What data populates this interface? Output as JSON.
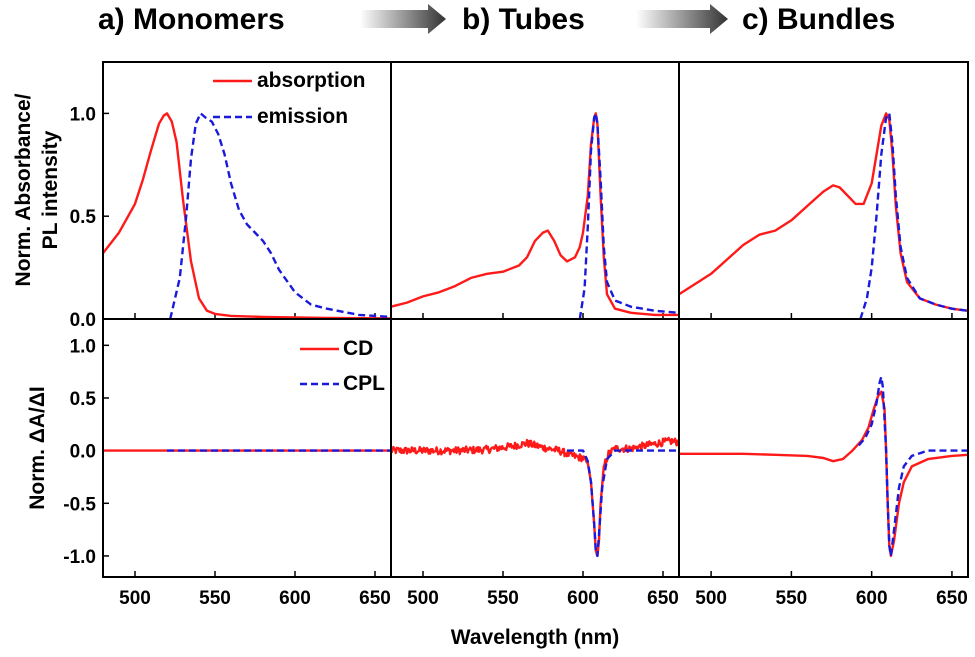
{
  "figure": {
    "headers": [
      "a)  Monomers",
      "b) Tubes",
      "c) Bundles"
    ],
    "ylabel_top_line1": "Norm. Absorbance/",
    "ylabel_top_line2": "PL intensity",
    "ylabel_bottom": "Norm. ΔA/ΔI",
    "xlabel": "Wavelength (nm)",
    "legend_top": [
      "absorption",
      "emission"
    ],
    "legend_bottom": [
      "CD",
      "CPL"
    ],
    "colors": {
      "red": "#ff1a1a",
      "blue": "#1a1adc",
      "arrow": "#444444"
    }
  },
  "chart_data": [
    {
      "type": "line",
      "panel": "top-a",
      "title": "a)  Monomers",
      "xlabel": "",
      "ylabel": "Norm. Absorbance/ PL intensity",
      "xlim": [
        480,
        660
      ],
      "ylim": [
        0,
        1.25
      ],
      "xticks": [
        500,
        550,
        600,
        650
      ],
      "yticks": [
        0.0,
        0.5,
        1.0
      ],
      "legend": "top-right",
      "series": [
        {
          "name": "absorption",
          "style": "solid",
          "color": "#ff1a1a",
          "x": [
            480,
            490,
            500,
            505,
            510,
            515,
            518,
            520,
            523,
            526,
            530,
            535,
            540,
            545,
            550,
            560,
            580,
            600,
            620,
            660
          ],
          "y": [
            0.32,
            0.42,
            0.56,
            0.68,
            0.82,
            0.95,
            0.99,
            1.0,
            0.96,
            0.86,
            0.58,
            0.28,
            0.1,
            0.04,
            0.025,
            0.015,
            0.01,
            0.008,
            0.005,
            0.003
          ]
        },
        {
          "name": "emission",
          "style": "dashed",
          "color": "#1a1adc",
          "x": [
            522,
            528,
            532,
            535,
            538,
            541,
            544,
            548,
            552,
            556,
            560,
            565,
            570,
            575,
            580,
            585,
            590,
            600,
            610,
            620,
            640,
            660
          ],
          "y": [
            0.0,
            0.2,
            0.5,
            0.78,
            0.95,
            1.0,
            0.98,
            0.96,
            0.9,
            0.8,
            0.66,
            0.53,
            0.46,
            0.42,
            0.38,
            0.32,
            0.24,
            0.13,
            0.07,
            0.05,
            0.02,
            0.01
          ]
        }
      ]
    },
    {
      "type": "line",
      "panel": "top-b",
      "title": "b) Tubes",
      "xlim": [
        480,
        660
      ],
      "ylim": [
        0,
        1.25
      ],
      "xticks": [
        500,
        550,
        600,
        650
      ],
      "series": [
        {
          "name": "absorption",
          "style": "solid",
          "color": "#ff1a1a",
          "x": [
            480,
            490,
            500,
            510,
            520,
            530,
            540,
            550,
            560,
            565,
            570,
            575,
            578,
            582,
            586,
            590,
            595,
            598,
            600,
            603,
            605,
            607,
            608,
            609,
            611,
            613,
            615,
            620,
            630,
            645,
            660
          ],
          "y": [
            0.06,
            0.08,
            0.11,
            0.13,
            0.16,
            0.2,
            0.22,
            0.23,
            0.26,
            0.3,
            0.38,
            0.42,
            0.43,
            0.38,
            0.31,
            0.28,
            0.3,
            0.35,
            0.42,
            0.6,
            0.85,
            0.98,
            1.0,
            0.95,
            0.6,
            0.3,
            0.12,
            0.05,
            0.03,
            0.02,
            0.02
          ]
        },
        {
          "name": "emission",
          "style": "dashed",
          "color": "#1a1adc",
          "x": [
            598,
            601,
            603,
            605,
            607,
            608,
            609,
            611,
            613,
            615,
            620,
            630,
            645,
            660
          ],
          "y": [
            0.0,
            0.15,
            0.45,
            0.82,
            0.98,
            1.0,
            0.95,
            0.68,
            0.35,
            0.18,
            0.09,
            0.06,
            0.04,
            0.03
          ]
        }
      ]
    },
    {
      "type": "line",
      "panel": "top-c",
      "title": "c) Bundles",
      "xlim": [
        480,
        660
      ],
      "ylim": [
        0,
        1.25
      ],
      "xticks": [
        500,
        550,
        600,
        650
      ],
      "series": [
        {
          "name": "absorption",
          "style": "solid",
          "color": "#ff1a1a",
          "x": [
            480,
            490,
            500,
            510,
            520,
            530,
            540,
            550,
            560,
            570,
            576,
            580,
            585,
            590,
            595,
            600,
            603,
            606,
            609,
            611,
            613,
            615,
            618,
            622,
            630,
            640,
            650,
            660
          ],
          "y": [
            0.12,
            0.17,
            0.22,
            0.29,
            0.36,
            0.41,
            0.43,
            0.48,
            0.55,
            0.62,
            0.65,
            0.64,
            0.6,
            0.56,
            0.56,
            0.66,
            0.8,
            0.94,
            1.0,
            0.97,
            0.8,
            0.55,
            0.32,
            0.18,
            0.1,
            0.07,
            0.05,
            0.04
          ]
        },
        {
          "name": "emission",
          "style": "dashed",
          "color": "#1a1adc",
          "x": [
            593,
            597,
            600,
            603,
            606,
            609,
            611,
            613,
            615,
            618,
            622,
            630,
            640,
            650,
            660
          ],
          "y": [
            0.0,
            0.1,
            0.25,
            0.5,
            0.8,
            0.98,
            1.0,
            0.85,
            0.6,
            0.35,
            0.2,
            0.1,
            0.07,
            0.05,
            0.04
          ]
        }
      ]
    },
    {
      "type": "line",
      "panel": "bottom-a",
      "xlabel": "",
      "ylabel": "Norm. ΔA/ΔI",
      "xlim": [
        480,
        660
      ],
      "ylim": [
        -1.2,
        1.25
      ],
      "xticks": [
        500,
        550,
        600,
        650
      ],
      "yticks": [
        -1.0,
        -0.5,
        0.0,
        0.5,
        1.0
      ],
      "legend": "top-right",
      "series": [
        {
          "name": "CD",
          "style": "solid",
          "color": "#ff1a1a",
          "x": [
            480,
            660
          ],
          "y": [
            0.0,
            0.0
          ]
        },
        {
          "name": "CPL",
          "style": "dashed",
          "color": "#1a1adc",
          "x": [
            520,
            660
          ],
          "y": [
            0.0,
            0.0
          ]
        }
      ]
    },
    {
      "type": "line",
      "panel": "bottom-b",
      "xlim": [
        480,
        660
      ],
      "ylim": [
        -1.2,
        1.25
      ],
      "xticks": [
        500,
        550,
        600,
        650
      ],
      "series": [
        {
          "name": "CD",
          "style": "solid",
          "color": "#ff1a1a",
          "noise": 0.035,
          "x": [
            480,
            500,
            520,
            540,
            555,
            565,
            575,
            585,
            592,
            596,
            600,
            603,
            605,
            607,
            608,
            609,
            610,
            611,
            613,
            616,
            620,
            630,
            640,
            650,
            655,
            660
          ],
          "y": [
            0.0,
            0.0,
            0.0,
            0.01,
            0.04,
            0.07,
            0.03,
            0.0,
            -0.04,
            -0.06,
            -0.07,
            -0.12,
            -0.3,
            -0.7,
            -0.95,
            -1.0,
            -0.85,
            -0.5,
            -0.15,
            -0.03,
            0.02,
            0.02,
            0.05,
            0.08,
            0.09,
            0.08
          ]
        },
        {
          "name": "CPL",
          "style": "dashed",
          "color": "#1a1adc",
          "x": [
            590,
            600,
            603,
            605,
            607,
            608,
            609,
            610,
            612,
            615,
            620,
            630,
            645,
            660
          ],
          "y": [
            0.0,
            0.0,
            -0.1,
            -0.3,
            -0.7,
            -0.95,
            -1.0,
            -0.8,
            -0.35,
            -0.08,
            0.0,
            0.0,
            0.0,
            0.0
          ]
        }
      ]
    },
    {
      "type": "line",
      "panel": "bottom-c",
      "xlim": [
        480,
        660
      ],
      "ylim": [
        -1.2,
        1.25
      ],
      "xticks": [
        500,
        550,
        600,
        650
      ],
      "series": [
        {
          "name": "CD",
          "style": "solid",
          "color": "#ff1a1a",
          "x": [
            480,
            500,
            520,
            540,
            560,
            570,
            576,
            582,
            588,
            594,
            598,
            601,
            604,
            606,
            608,
            609,
            610,
            611,
            612,
            614,
            617,
            620,
            625,
            635,
            650,
            660
          ],
          "y": [
            -0.03,
            -0.03,
            -0.03,
            -0.04,
            -0.05,
            -0.07,
            -0.1,
            -0.08,
            0.0,
            0.1,
            0.22,
            0.38,
            0.52,
            0.56,
            0.4,
            0.0,
            -0.5,
            -0.9,
            -1.0,
            -0.85,
            -0.5,
            -0.3,
            -0.15,
            -0.08,
            -0.05,
            -0.04
          ]
        },
        {
          "name": "CPL",
          "style": "dashed",
          "color": "#1a1adc",
          "x": [
            592,
            596,
            600,
            603,
            605,
            606,
            607,
            608,
            609,
            610,
            611,
            612,
            614,
            617,
            620,
            625,
            635,
            650,
            660
          ],
          "y": [
            0.05,
            0.12,
            0.25,
            0.45,
            0.65,
            0.7,
            0.6,
            0.3,
            0.0,
            -0.5,
            -0.9,
            -1.0,
            -0.75,
            -0.35,
            -0.15,
            -0.05,
            0.0,
            0.0,
            0.0
          ]
        }
      ]
    }
  ]
}
